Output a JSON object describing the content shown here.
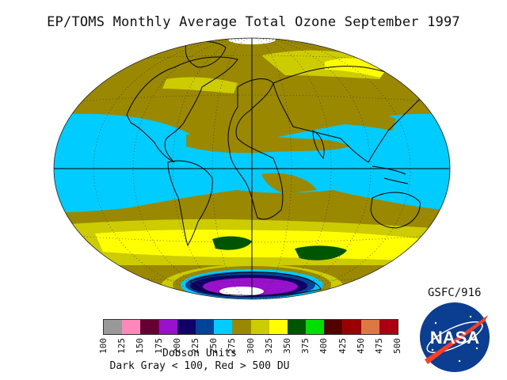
{
  "title": "EP/TOMS Monthly Average Total Ozone September 1997",
  "attribution": "GSFC/916",
  "legend": {
    "units": "Dobson Units",
    "note": "Dark Gray < 100, Red > 500 DU",
    "ticks": [
      "100",
      "125",
      "150",
      "175",
      "200",
      "225",
      "250",
      "275",
      "300",
      "325",
      "350",
      "375",
      "400",
      "425",
      "450",
      "475",
      "500"
    ],
    "colors": [
      "#999999",
      "#ff88bb",
      "#660033",
      "#9911cc",
      "#110066",
      "#004499",
      "#00ccff",
      "#998800",
      "#cccc00",
      "#ffff00",
      "#005500",
      "#00dd00",
      "#550000",
      "#990000",
      "#dd7744",
      "#aa0011"
    ]
  },
  "logo": {
    "text": "NASA",
    "icon": "nasa-meatball-logo"
  },
  "map": {
    "projection": "Aitoff-style oval",
    "colors": {
      "ocean_low": "#00ccff",
      "mid": "#998800",
      "yellow": "#ffff00",
      "yellow_mid": "#cccc00",
      "green": "#005500",
      "ozone_hole_dark": "#110066",
      "ozone_hole_purple": "#9911cc"
    }
  }
}
